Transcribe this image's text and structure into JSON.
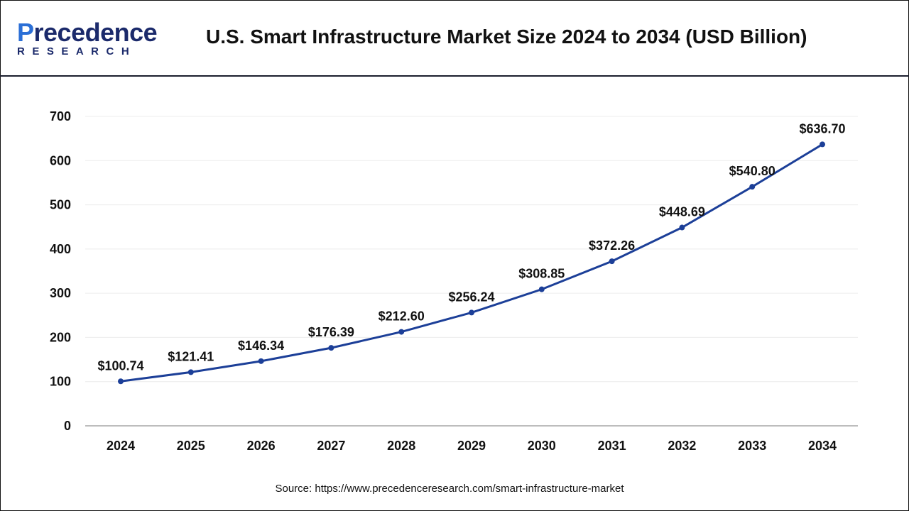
{
  "logo": {
    "text_main": "Precedence",
    "text_sub": "RESEARCH"
  },
  "title": "U.S. Smart Infrastructure Market Size 2024 to 2034 (USD Billion)",
  "source": "Source: https://www.precedenceresearch.com/smart-infrastructure-market",
  "chart_data": {
    "type": "line",
    "title": "U.S. Smart Infrastructure Market Size 2024 to 2034 (USD Billion)",
    "categories": [
      "2024",
      "2025",
      "2026",
      "2027",
      "2028",
      "2029",
      "2030",
      "2031",
      "2032",
      "2033",
      "2034"
    ],
    "values": [
      100.74,
      121.41,
      146.34,
      176.39,
      212.6,
      256.24,
      308.85,
      372.26,
      448.69,
      540.8,
      636.7
    ],
    "data_labels": [
      "$100.74",
      "$121.41",
      "$146.34",
      "$176.39",
      "$212.60",
      "$256.24",
      "$308.85",
      "$372.26",
      "$448.69",
      "$540.80",
      "$636.70"
    ],
    "yticks": [
      "0",
      "100",
      "200",
      "300",
      "400",
      "500",
      "600",
      "700"
    ],
    "ylim": [
      0,
      700
    ],
    "grid": true,
    "line_color": "#1c3f98"
  }
}
